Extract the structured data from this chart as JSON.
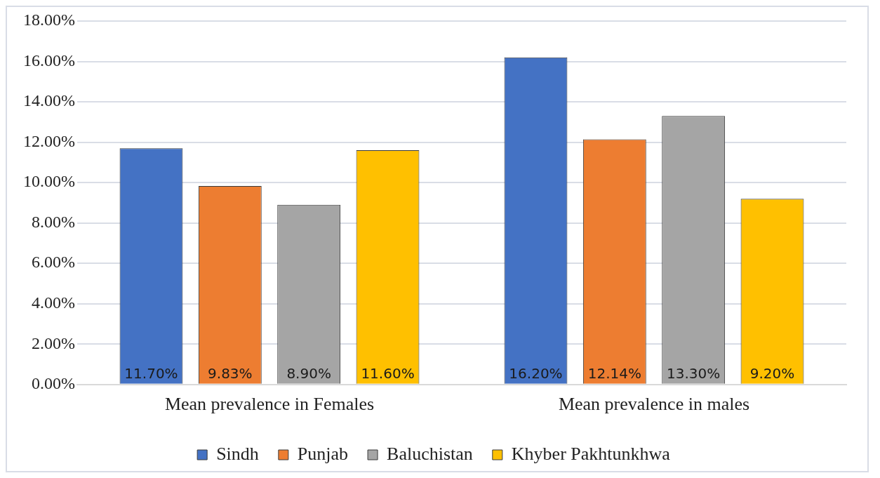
{
  "chart_data": {
    "type": "bar",
    "categories": [
      "Mean prevalence in Females",
      "Mean prevalence in males"
    ],
    "series": [
      {
        "name": "Sindh",
        "color": "#4472c4",
        "values": [
          11.7,
          16.2
        ],
        "value_labels": [
          "11.70%",
          "16.20%"
        ]
      },
      {
        "name": "Punjab",
        "color": "#ed7d31",
        "values": [
          9.83,
          12.14
        ],
        "value_labels": [
          "9.83%",
          "12.14%"
        ]
      },
      {
        "name": "Baluchistan",
        "color": "#a5a5a5",
        "values": [
          8.9,
          13.3
        ],
        "value_labels": [
          "8.90%",
          "13.30%"
        ]
      },
      {
        "name": "Khyber Pakhtunkhwa",
        "color": "#ffc000",
        "values": [
          11.6,
          9.2
        ],
        "value_labels": [
          "11.60%",
          "9.20%"
        ]
      }
    ],
    "ylim": [
      0,
      18
    ],
    "yticks": [
      {
        "value": 0,
        "label": "0.00%"
      },
      {
        "value": 2,
        "label": "2.00%"
      },
      {
        "value": 4,
        "label": "4.00%"
      },
      {
        "value": 6,
        "label": "6.00%"
      },
      {
        "value": 8,
        "label": "8.00%"
      },
      {
        "value": 10,
        "label": "10.00%"
      },
      {
        "value": 12,
        "label": "12.00%"
      },
      {
        "value": 14,
        "label": "14.00%"
      },
      {
        "value": 16,
        "label": "16.00%"
      },
      {
        "value": 18,
        "label": "18.00%"
      }
    ],
    "grid": "y",
    "legend": "bottom"
  }
}
